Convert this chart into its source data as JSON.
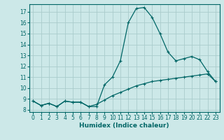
{
  "xlabel": "Humidex (Indice chaleur)",
  "background_color": "#cce8e8",
  "grid_color": "#aacccc",
  "line_color": "#006666",
  "xlim": [
    -0.5,
    23.5
  ],
  "ylim": [
    7.8,
    17.7
  ],
  "yticks": [
    8,
    9,
    10,
    11,
    12,
    13,
    14,
    15,
    16,
    17
  ],
  "xticks": [
    0,
    1,
    2,
    3,
    4,
    5,
    6,
    7,
    8,
    9,
    10,
    11,
    12,
    13,
    14,
    15,
    16,
    17,
    18,
    19,
    20,
    21,
    22,
    23
  ],
  "series1_x": [
    0,
    1,
    2,
    3,
    4,
    5,
    6,
    7,
    8,
    9,
    10,
    11,
    12,
    13,
    14,
    15,
    16,
    17,
    18,
    19,
    20,
    21,
    22,
    23
  ],
  "series1_y": [
    8.8,
    8.4,
    8.6,
    8.3,
    8.8,
    8.7,
    8.7,
    8.3,
    8.3,
    10.3,
    11.0,
    12.5,
    16.0,
    17.3,
    17.4,
    16.5,
    15.0,
    13.3,
    12.5,
    12.7,
    12.9,
    12.6,
    11.5,
    10.6
  ],
  "series2_x": [
    0,
    1,
    2,
    3,
    4,
    5,
    6,
    7,
    8,
    9,
    10,
    11,
    12,
    13,
    14,
    15,
    16,
    17,
    18,
    19,
    20,
    21,
    22,
    23
  ],
  "series2_y": [
    8.8,
    8.4,
    8.6,
    8.3,
    8.8,
    8.7,
    8.7,
    8.3,
    8.5,
    8.9,
    9.3,
    9.6,
    9.9,
    10.2,
    10.4,
    10.6,
    10.7,
    10.8,
    10.9,
    11.0,
    11.1,
    11.2,
    11.3,
    10.6
  ],
  "xlabel_fontsize": 6.5,
  "tick_fontsize": 5.5,
  "xlabel_fontweight": "bold"
}
